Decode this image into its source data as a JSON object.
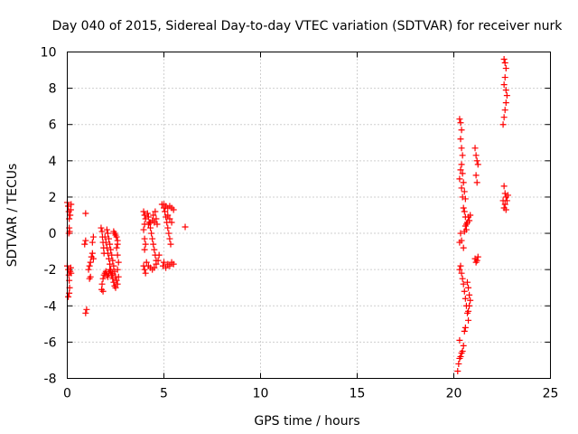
{
  "chart_data": {
    "type": "scatter",
    "title": "Day 040 of 2015, Sidereal Day-to-day VTEC variation (SDTVAR) for receiver nurk",
    "xlabel": "GPS time / hours",
    "ylabel": "SDTVAR / TECUs",
    "xlim": [
      0,
      25
    ],
    "ylim": [
      -8,
      10
    ],
    "xticks": [
      0,
      5,
      10,
      15,
      20,
      25
    ],
    "yticks": [
      -8,
      -6,
      -4,
      -2,
      0,
      2,
      4,
      6,
      8,
      10
    ],
    "grid": true,
    "marker": "+",
    "color": "#ff0000",
    "series": [
      {
        "name": "SDTVAR",
        "points": [
          [
            0.0,
            1.7
          ],
          [
            0.05,
            1.5
          ],
          [
            0.08,
            1.2
          ],
          [
            0.1,
            0.8
          ],
          [
            0.1,
            0.3
          ],
          [
            0.08,
            0.0
          ],
          [
            0.12,
            0.1
          ],
          [
            0.15,
            1.0
          ],
          [
            0.18,
            1.3
          ],
          [
            0.2,
            1.6
          ],
          [
            0.0,
            -1.8
          ],
          [
            0.05,
            -2.0
          ],
          [
            0.08,
            -2.3
          ],
          [
            0.1,
            -2.6
          ],
          [
            0.12,
            -3.0
          ],
          [
            0.1,
            -3.3
          ],
          [
            0.05,
            -3.5
          ],
          [
            0.15,
            -2.1
          ],
          [
            0.18,
            -1.9
          ],
          [
            0.2,
            -2.2
          ],
          [
            0.95,
            1.1
          ],
          [
            0.9,
            -0.6
          ],
          [
            0.95,
            -0.4
          ],
          [
            1.0,
            -4.2
          ],
          [
            0.95,
            -4.4
          ],
          [
            1.1,
            -2.0
          ],
          [
            1.15,
            -1.8
          ],
          [
            1.2,
            -1.6
          ],
          [
            1.25,
            -1.3
          ],
          [
            1.3,
            -1.1
          ],
          [
            1.35,
            -1.4
          ],
          [
            1.3,
            -0.5
          ],
          [
            1.35,
            -0.2
          ],
          [
            1.2,
            -2.4
          ],
          [
            1.15,
            -2.5
          ],
          [
            1.75,
            0.3
          ],
          [
            1.8,
            0.1
          ],
          [
            1.82,
            -0.2
          ],
          [
            1.85,
            -0.5
          ],
          [
            1.88,
            -0.8
          ],
          [
            1.9,
            -1.1
          ],
          [
            1.85,
            -2.5
          ],
          [
            1.8,
            -2.8
          ],
          [
            1.78,
            -3.1
          ],
          [
            1.85,
            -3.2
          ],
          [
            1.95,
            -0.2
          ],
          [
            2.0,
            -0.5
          ],
          [
            2.05,
            -0.8
          ],
          [
            2.1,
            -1.1
          ],
          [
            2.15,
            -1.4
          ],
          [
            2.2,
            -1.7
          ],
          [
            2.25,
            -2.0
          ],
          [
            2.3,
            -2.3
          ],
          [
            2.35,
            -2.5
          ],
          [
            2.4,
            -2.7
          ],
          [
            2.45,
            -2.9
          ],
          [
            2.5,
            -3.0
          ],
          [
            2.05,
            0.2
          ],
          [
            2.1,
            0.0
          ],
          [
            2.15,
            -0.3
          ],
          [
            2.2,
            -0.6
          ],
          [
            2.25,
            -0.9
          ],
          [
            2.3,
            -1.2
          ],
          [
            2.35,
            -1.5
          ],
          [
            2.4,
            -1.8
          ],
          [
            2.45,
            -2.1
          ],
          [
            2.5,
            -2.4
          ],
          [
            2.55,
            -2.6
          ],
          [
            1.9,
            -2.3
          ],
          [
            1.95,
            -2.2
          ],
          [
            2.0,
            -2.1
          ],
          [
            2.05,
            -2.3
          ],
          [
            2.1,
            -2.4
          ],
          [
            2.15,
            -2.2
          ],
          [
            2.2,
            -2.0
          ],
          [
            2.25,
            -2.1
          ],
          [
            2.3,
            -2.3
          ],
          [
            2.35,
            -2.2
          ],
          [
            2.4,
            0.1
          ],
          [
            2.45,
            0.0
          ],
          [
            2.5,
            -0.1
          ],
          [
            2.55,
            -0.2
          ],
          [
            2.6,
            -0.4
          ],
          [
            2.6,
            -0.6
          ],
          [
            2.55,
            -0.8
          ],
          [
            2.6,
            -1.2
          ],
          [
            2.65,
            -1.6
          ],
          [
            2.6,
            -2.0
          ],
          [
            2.65,
            -2.4
          ],
          [
            2.6,
            -2.8
          ],
          [
            3.95,
            1.2
          ],
          [
            4.0,
            1.0
          ],
          [
            4.05,
            0.8
          ],
          [
            4.0,
            0.5
          ],
          [
            3.95,
            0.2
          ],
          [
            4.0,
            -0.3
          ],
          [
            4.05,
            -0.6
          ],
          [
            4.0,
            -0.9
          ],
          [
            3.95,
            -1.8
          ],
          [
            4.0,
            -2.0
          ],
          [
            4.05,
            -2.2
          ],
          [
            4.15,
            1.1
          ],
          [
            4.2,
            0.9
          ],
          [
            4.25,
            0.6
          ],
          [
            4.3,
            0.3
          ],
          [
            4.35,
            0.0
          ],
          [
            4.4,
            -0.3
          ],
          [
            4.45,
            -0.6
          ],
          [
            4.5,
            -0.9
          ],
          [
            4.55,
            -1.2
          ],
          [
            4.6,
            -1.5
          ],
          [
            4.1,
            -1.6
          ],
          [
            4.2,
            -1.8
          ],
          [
            4.3,
            -1.9
          ],
          [
            4.4,
            -2.0
          ],
          [
            4.5,
            -1.9
          ],
          [
            4.6,
            -1.7
          ],
          [
            4.7,
            -1.5
          ],
          [
            4.75,
            -1.2
          ],
          [
            4.2,
            0.5
          ],
          [
            4.3,
            0.6
          ],
          [
            4.4,
            0.7
          ],
          [
            4.5,
            0.6
          ],
          [
            4.6,
            0.8
          ],
          [
            4.65,
            0.5
          ],
          [
            4.45,
            1.0
          ],
          [
            4.55,
            1.2
          ],
          [
            4.9,
            1.6
          ],
          [
            5.0,
            1.4
          ],
          [
            5.05,
            1.2
          ],
          [
            5.1,
            0.9
          ],
          [
            5.15,
            0.6
          ],
          [
            5.2,
            0.3
          ],
          [
            5.25,
            0.0
          ],
          [
            5.3,
            -0.3
          ],
          [
            5.35,
            -0.6
          ],
          [
            4.95,
            -1.8
          ],
          [
            5.0,
            -1.6
          ],
          [
            5.1,
            -1.9
          ],
          [
            5.2,
            -1.7
          ],
          [
            5.3,
            -1.8
          ],
          [
            5.4,
            -1.6
          ],
          [
            5.5,
            -1.7
          ],
          [
            5.0,
            1.6
          ],
          [
            5.1,
            1.5
          ],
          [
            5.2,
            1.4
          ],
          [
            5.3,
            1.5
          ],
          [
            5.4,
            1.4
          ],
          [
            5.5,
            1.3
          ],
          [
            5.2,
            1.0
          ],
          [
            5.3,
            0.8
          ],
          [
            5.4,
            0.6
          ],
          [
            6.1,
            0.35
          ],
          [
            20.2,
            -7.6
          ],
          [
            20.25,
            -7.2
          ],
          [
            20.3,
            -6.9
          ],
          [
            20.35,
            -6.8
          ],
          [
            20.4,
            -6.6
          ],
          [
            20.45,
            -6.5
          ],
          [
            20.5,
            -6.2
          ],
          [
            20.3,
            -5.9
          ],
          [
            20.3,
            -2.0
          ],
          [
            20.35,
            -1.8
          ],
          [
            20.4,
            -2.2
          ],
          [
            20.45,
            -2.5
          ],
          [
            20.5,
            -2.8
          ],
          [
            20.55,
            -3.2
          ],
          [
            20.6,
            -3.6
          ],
          [
            20.65,
            -4.0
          ],
          [
            20.7,
            -4.4
          ],
          [
            20.75,
            -4.8
          ],
          [
            20.6,
            -5.2
          ],
          [
            20.55,
            -5.4
          ],
          [
            20.7,
            -2.7
          ],
          [
            20.75,
            -3.0
          ],
          [
            20.8,
            -3.4
          ],
          [
            20.85,
            -3.7
          ],
          [
            20.8,
            -4.0
          ],
          [
            20.75,
            -4.3
          ],
          [
            20.3,
            6.3
          ],
          [
            20.35,
            6.1
          ],
          [
            20.4,
            5.7
          ],
          [
            20.35,
            5.2
          ],
          [
            20.4,
            4.7
          ],
          [
            20.45,
            4.3
          ],
          [
            20.4,
            3.8
          ],
          [
            20.45,
            3.3
          ],
          [
            20.5,
            2.8
          ],
          [
            20.55,
            2.3
          ],
          [
            20.6,
            1.9
          ],
          [
            20.3,
            -0.5
          ],
          [
            20.35,
            0.0
          ],
          [
            20.4,
            -0.4
          ],
          [
            20.5,
            -0.8
          ],
          [
            20.55,
            0.1
          ],
          [
            20.6,
            0.4
          ],
          [
            20.65,
            0.2
          ],
          [
            20.7,
            0.6
          ],
          [
            20.75,
            0.9
          ],
          [
            20.8,
            0.7
          ],
          [
            20.85,
            1.0
          ],
          [
            20.5,
            1.4
          ],
          [
            20.55,
            1.2
          ],
          [
            20.6,
            0.9
          ],
          [
            20.65,
            0.5
          ],
          [
            20.3,
            3.0
          ],
          [
            20.35,
            3.5
          ],
          [
            20.4,
            2.5
          ],
          [
            20.45,
            2.0
          ],
          [
            21.1,
            4.7
          ],
          [
            21.15,
            4.3
          ],
          [
            21.2,
            4.0
          ],
          [
            21.25,
            3.8
          ],
          [
            21.15,
            3.2
          ],
          [
            21.2,
            2.8
          ],
          [
            21.1,
            -1.4
          ],
          [
            21.15,
            -1.6
          ],
          [
            21.2,
            -1.5
          ],
          [
            21.25,
            -1.3
          ],
          [
            22.6,
            9.6
          ],
          [
            22.65,
            9.4
          ],
          [
            22.7,
            9.1
          ],
          [
            22.65,
            8.6
          ],
          [
            22.6,
            8.2
          ],
          [
            22.7,
            7.9
          ],
          [
            22.75,
            7.6
          ],
          [
            22.7,
            7.2
          ],
          [
            22.65,
            6.8
          ],
          [
            22.6,
            6.4
          ],
          [
            22.55,
            6.0
          ],
          [
            22.6,
            2.6
          ],
          [
            22.65,
            2.2
          ],
          [
            22.7,
            2.0
          ],
          [
            22.75,
            1.8
          ],
          [
            22.65,
            1.6
          ],
          [
            22.6,
            1.4
          ],
          [
            22.7,
            1.3
          ],
          [
            22.55,
            1.8
          ],
          [
            22.8,
            2.1
          ]
        ]
      }
    ]
  }
}
